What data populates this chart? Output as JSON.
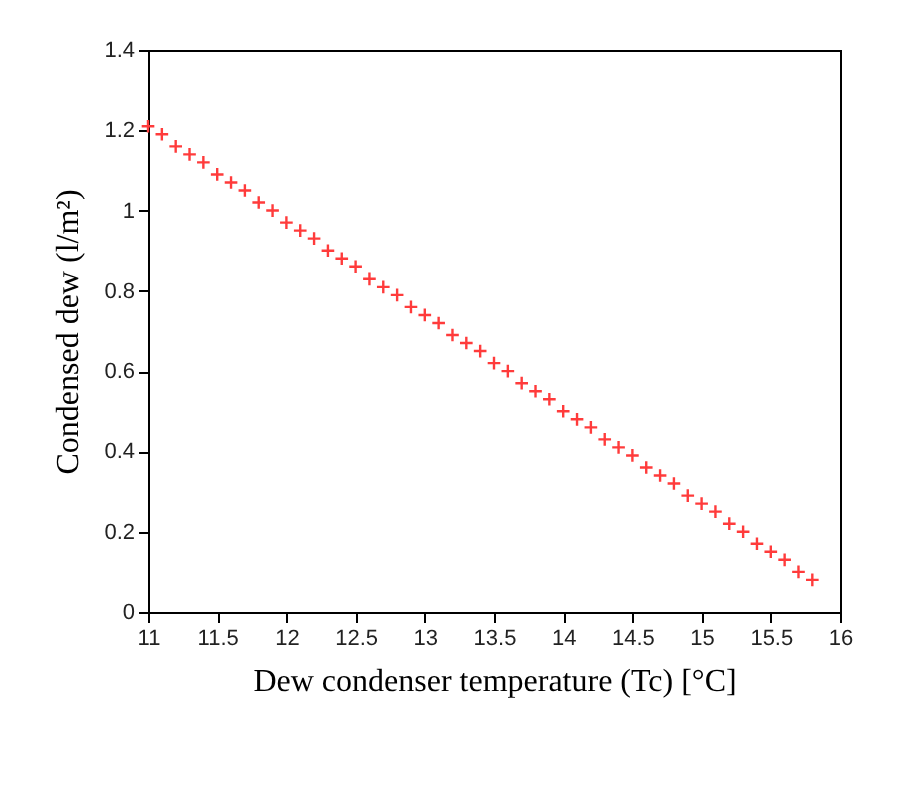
{
  "chart_data": {
    "type": "scatter",
    "xlabel": "Dew condenser temperature (Tc) [°C]",
    "ylabel": "Condensed dew (l/m²)",
    "x": [
      11,
      11.1,
      11.2,
      11.3,
      11.4,
      11.5,
      11.6,
      11.7,
      11.8,
      11.9,
      12,
      12.1,
      12.2,
      12.3,
      12.4,
      12.5,
      12.6,
      12.7,
      12.8,
      12.9,
      13,
      13.1,
      13.2,
      13.3,
      13.4,
      13.5,
      13.6,
      13.7,
      13.8,
      13.9,
      14,
      14.1,
      14.2,
      14.3,
      14.4,
      14.5,
      14.6,
      14.7,
      14.8,
      14.9,
      15,
      15.1,
      15.2,
      15.3,
      15.4,
      15.5,
      15.6,
      15.7,
      15.8
    ],
    "series": [
      {
        "color": "#ff3b3b",
        "values": [
          1.21,
          1.19,
          1.16,
          1.14,
          1.12,
          1.09,
          1.07,
          1.05,
          1.02,
          1.0,
          0.97,
          0.95,
          0.93,
          0.9,
          0.88,
          0.86,
          0.83,
          0.81,
          0.79,
          0.76,
          0.74,
          0.72,
          0.69,
          0.67,
          0.65,
          0.62,
          0.6,
          0.57,
          0.55,
          0.53,
          0.5,
          0.48,
          0.46,
          0.43,
          0.41,
          0.39,
          0.36,
          0.34,
          0.32,
          0.29,
          0.27,
          0.25,
          0.22,
          0.2,
          0.17,
          0.15,
          0.13,
          0.1,
          0.08
        ]
      }
    ],
    "xlim": [
      11,
      16
    ],
    "xticks": [
      11,
      11.5,
      12,
      12.5,
      13,
      13.5,
      14,
      14.5,
      15,
      15.5,
      16
    ],
    "ylim": [
      0,
      1.4
    ],
    "yticks": [
      0,
      0.2,
      0.4,
      0.6,
      0.8,
      1,
      1.2,
      1.4
    ],
    "grid": false,
    "marker": "cross"
  }
}
